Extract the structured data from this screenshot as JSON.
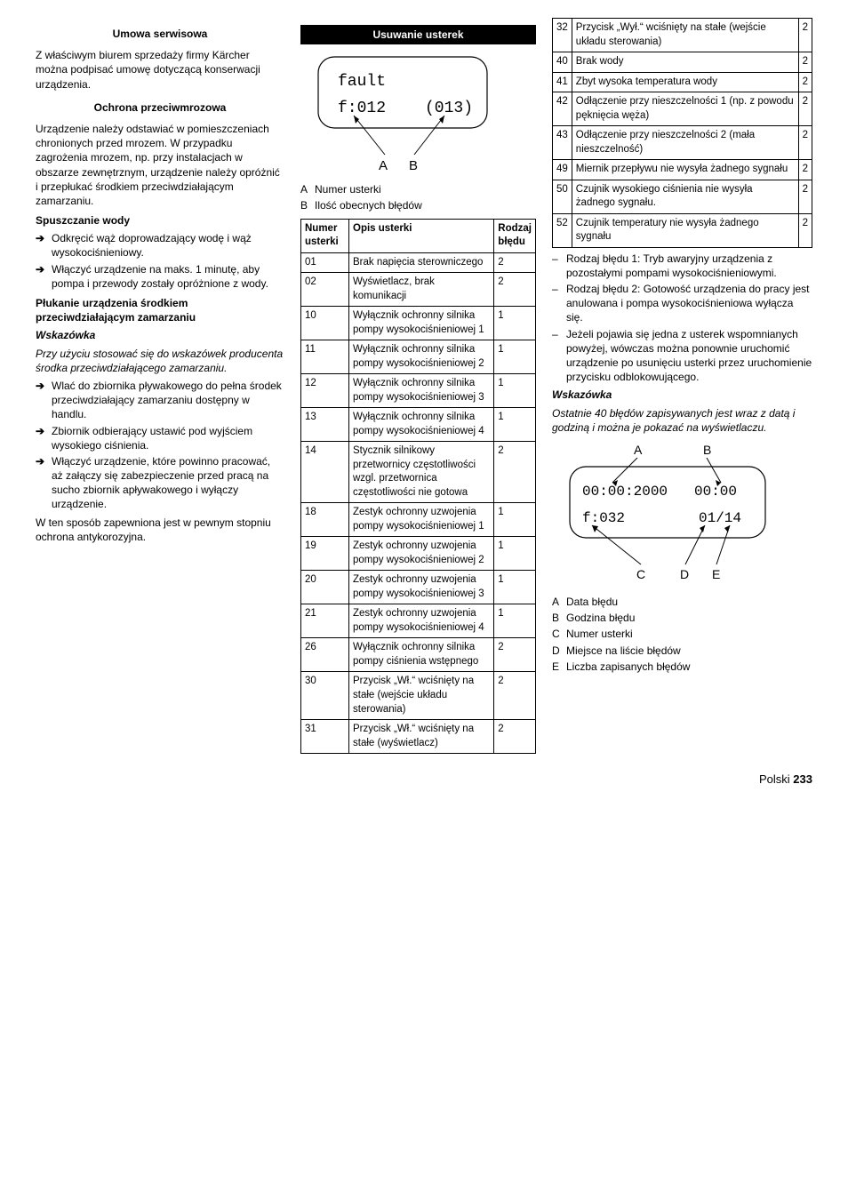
{
  "col1": {
    "h1": "Umowa serwisowa",
    "p1": "Z właściwym biurem sprzedaży firmy Kärcher można podpisać umowę dotyczącą konserwacji urządzenia.",
    "h2": "Ochrona przeciwmrozowa",
    "p2": "Urządzenie należy odstawiać w pomieszczeniach chronionych przed mrozem. W przypadku zagrożenia mrozem, np. przy instalacjach w obszarze zewnętrznym, urządzenie należy opróżnić i przepłukać środkiem przeciwdziałającym zamarzaniu.",
    "h3": "Spuszczanie wody",
    "b31": "Odkręcić wąż doprowadzający wodę i wąż wysokociśnieniowy.",
    "b32": "Włączyć urządzenie na maks. 1 minutę, aby pompa i przewody zostały opróżnione z wody.",
    "h4a": "Płukanie urządzenia środkiem",
    "h4b": "przeciwdziałającym zamarzaniu",
    "h4hint": "Wskazówka",
    "p4": "Przy użyciu stosować się do wskazówek producenta środka przeciwdziałającego zamarzaniu.",
    "b41": "Wlać do zbiornika pływakowego do pełna środek przeciwdziałający zamarzaniu dostępny w handlu.",
    "b42": "Zbiornik odbierający ustawić pod wyjściem wysokiego ciśnienia.",
    "b43": "Włączyć urządzenie, które powinno pracować, aż załączy się zabezpieczenie przed pracą na sucho zbiornik apływakowego i wyłączy urządzenie.",
    "p5": "W ten sposób zapewniona jest w pewnym stopniu ochrona antykorozyjna."
  },
  "col2": {
    "title": "Usuwanie usterek",
    "svg1": {
      "l1": "fault",
      "l2a": "f:012",
      "l2b": "(013)",
      "A": "A",
      "B": "B"
    },
    "legA": "A",
    "legAText": "Numer usterki",
    "legB": "B",
    "legBText": "Ilość obecnych błędów",
    "th1": "Numer usterki",
    "th2": "Opis usterki",
    "th3": "Rodzaj błędu",
    "rows": [
      {
        "n": "01",
        "d": "Brak napięcia sterowniczego",
        "t": "2"
      },
      {
        "n": "02",
        "d": "Wyświetlacz, brak komunikacji",
        "t": "2"
      },
      {
        "n": "10",
        "d": "Wyłącznik ochronny silnika pompy wysokociśnieniowej 1",
        "t": "1"
      },
      {
        "n": "11",
        "d": "Wyłącznik ochronny silnika pompy wysokociśnieniowej 2",
        "t": "1"
      },
      {
        "n": "12",
        "d": "Wyłącznik ochronny silnika pompy wysokociśnieniowej 3",
        "t": "1"
      },
      {
        "n": "13",
        "d": "Wyłącznik ochronny silnika pompy wysokociśnieniowej 4",
        "t": "1"
      },
      {
        "n": "14",
        "d": "Stycznik silnikowy przetwornicy częstotliwości wzgl. przetwornica częstotliwości nie gotowa",
        "t": "2"
      },
      {
        "n": "18",
        "d": "Zestyk ochronny uzwojenia pompy wysokociśnieniowej 1",
        "t": "1"
      },
      {
        "n": "19",
        "d": "Zestyk ochronny uzwojenia pompy wysokociśnieniowej 2",
        "t": "1"
      },
      {
        "n": "20",
        "d": "Zestyk ochronny uzwojenia pompy wysokociśnieniowej 3",
        "t": "1"
      },
      {
        "n": "21",
        "d": "Zestyk ochronny uzwojenia pompy wysokociśnieniowej 4",
        "t": "1"
      },
      {
        "n": "26",
        "d": "Wyłącznik ochronny silnika pompy ciśnienia wstępnego",
        "t": "2"
      },
      {
        "n": "30",
        "d": "Przycisk „Wł.“ wciśnięty na stałe (wejście układu sterowania)",
        "t": "2"
      },
      {
        "n": "31",
        "d": "Przycisk „Wł.“ wciśnięty na stałe (wyświetlacz)",
        "t": "2"
      }
    ]
  },
  "col3": {
    "rows": [
      {
        "n": "32",
        "d": "Przycisk „Wył.“ wciśnięty na stałe (wejście układu sterowania)",
        "t": "2"
      },
      {
        "n": "40",
        "d": "Brak wody",
        "t": "2"
      },
      {
        "n": "41",
        "d": "Zbyt wysoka temperatura wody",
        "t": "2"
      },
      {
        "n": "42",
        "d": "Odłączenie przy nieszczelności 1 (np. z powodu pęknięcia węża)",
        "t": "2"
      },
      {
        "n": "43",
        "d": "Odłączenie przy nieszczelności 2 (mała nieszczelność)",
        "t": "2"
      },
      {
        "n": "49",
        "d": "Miernik przepływu nie wysyła żadnego sygnału",
        "t": "2"
      },
      {
        "n": "50",
        "d": "Czujnik wysokiego ciśnienia nie wysyła żadnego sygnału.",
        "t": "2"
      },
      {
        "n": "52",
        "d": "Czujnik temperatury nie wysyła żadnego sygnału",
        "t": "2"
      }
    ],
    "d1": "Rodzaj błędu 1: Tryb awaryjny urządzenia z pozostałymi pompami wysokociśnieniowymi.",
    "d2": "Rodzaj błędu 2: Gotowość urządzenia do pracy jest anulowana i pompa wysokociśnieniowa wyłącza się.",
    "d3": "Jeżeli pojawia się jedna z usterek wspomnianych powyżej, wówczas można ponownie uruchomić urządzenie po usunięciu usterki przez uruchomienie przycisku odblokowującego.",
    "hint": "Wskazówka",
    "p4": "Ostatnie 40 błędów zapisywanych jest wraz z datą i godziną i można je pokazać na wyświetlaczu.",
    "svg2": {
      "A": "A",
      "B": "B",
      "C": "C",
      "D": "D",
      "E": "E",
      "l1a": "00:00:2000",
      "l1b": "00:00",
      "l2a": "f:032",
      "l2b": "01/14"
    },
    "legA": "A",
    "legAT": "Data błędu",
    "legB": "B",
    "legBT": "Godzina błędu",
    "legC": "C",
    "legCT": "Numer usterki",
    "legD": "D",
    "legDT": "Miejsce na liście błędów",
    "legE": "E",
    "legET": "Liczba zapisanych błędów"
  },
  "footer": {
    "lang": "Polski",
    "page": "233"
  }
}
